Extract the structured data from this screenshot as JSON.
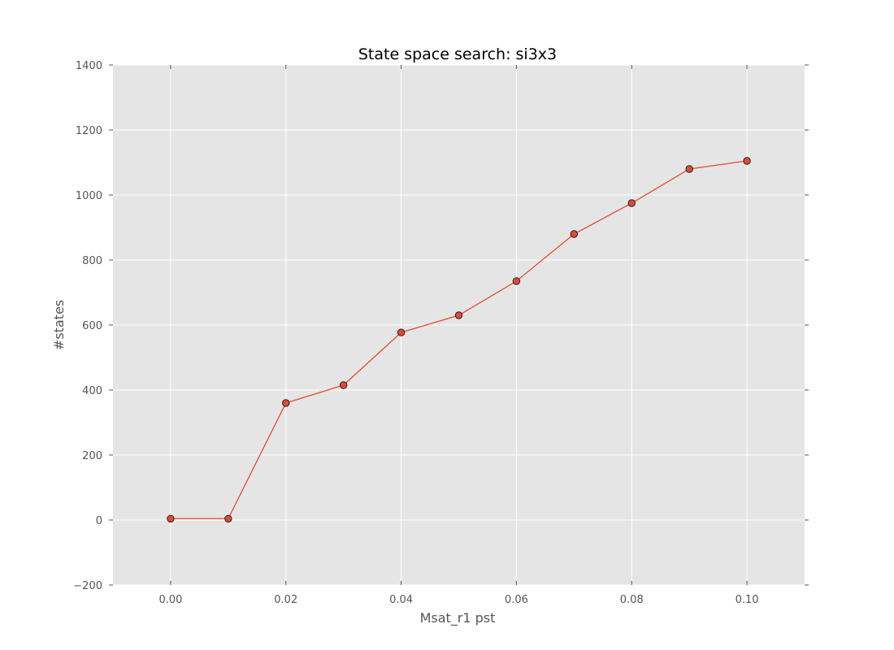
{
  "chart_data": {
    "type": "line",
    "title": "State space search: si3x3",
    "xlabel": "Msat_r1 pst",
    "ylabel": "#states",
    "xlim": [
      -0.01,
      0.11
    ],
    "ylim": [
      -200,
      1400
    ],
    "grid": true,
    "x_ticks": [
      0.0,
      0.02,
      0.04,
      0.06,
      0.08,
      0.1
    ],
    "x_tick_labels": [
      "0.00",
      "0.02",
      "0.04",
      "0.06",
      "0.08",
      "0.10"
    ],
    "y_ticks": [
      -200,
      0,
      200,
      400,
      600,
      800,
      1000,
      1200,
      1400
    ],
    "y_tick_labels": [
      "−200",
      "0",
      "200",
      "400",
      "600",
      "800",
      "1000",
      "1200",
      "1400"
    ],
    "series": [
      {
        "x": [
          0.0,
          0.01,
          0.02,
          0.03,
          0.04,
          0.05,
          0.06,
          0.07,
          0.08,
          0.09,
          0.1
        ],
        "y": [
          4,
          4,
          360,
          415,
          577,
          630,
          735,
          880,
          975,
          1080,
          1105
        ],
        "color": "#e24a33",
        "marker": "circle"
      }
    ]
  },
  "colors": {
    "plot_background": "#e5e5e5",
    "grid": "#ffffff",
    "series": "#e24a33",
    "marker_edge": "#222222"
  }
}
